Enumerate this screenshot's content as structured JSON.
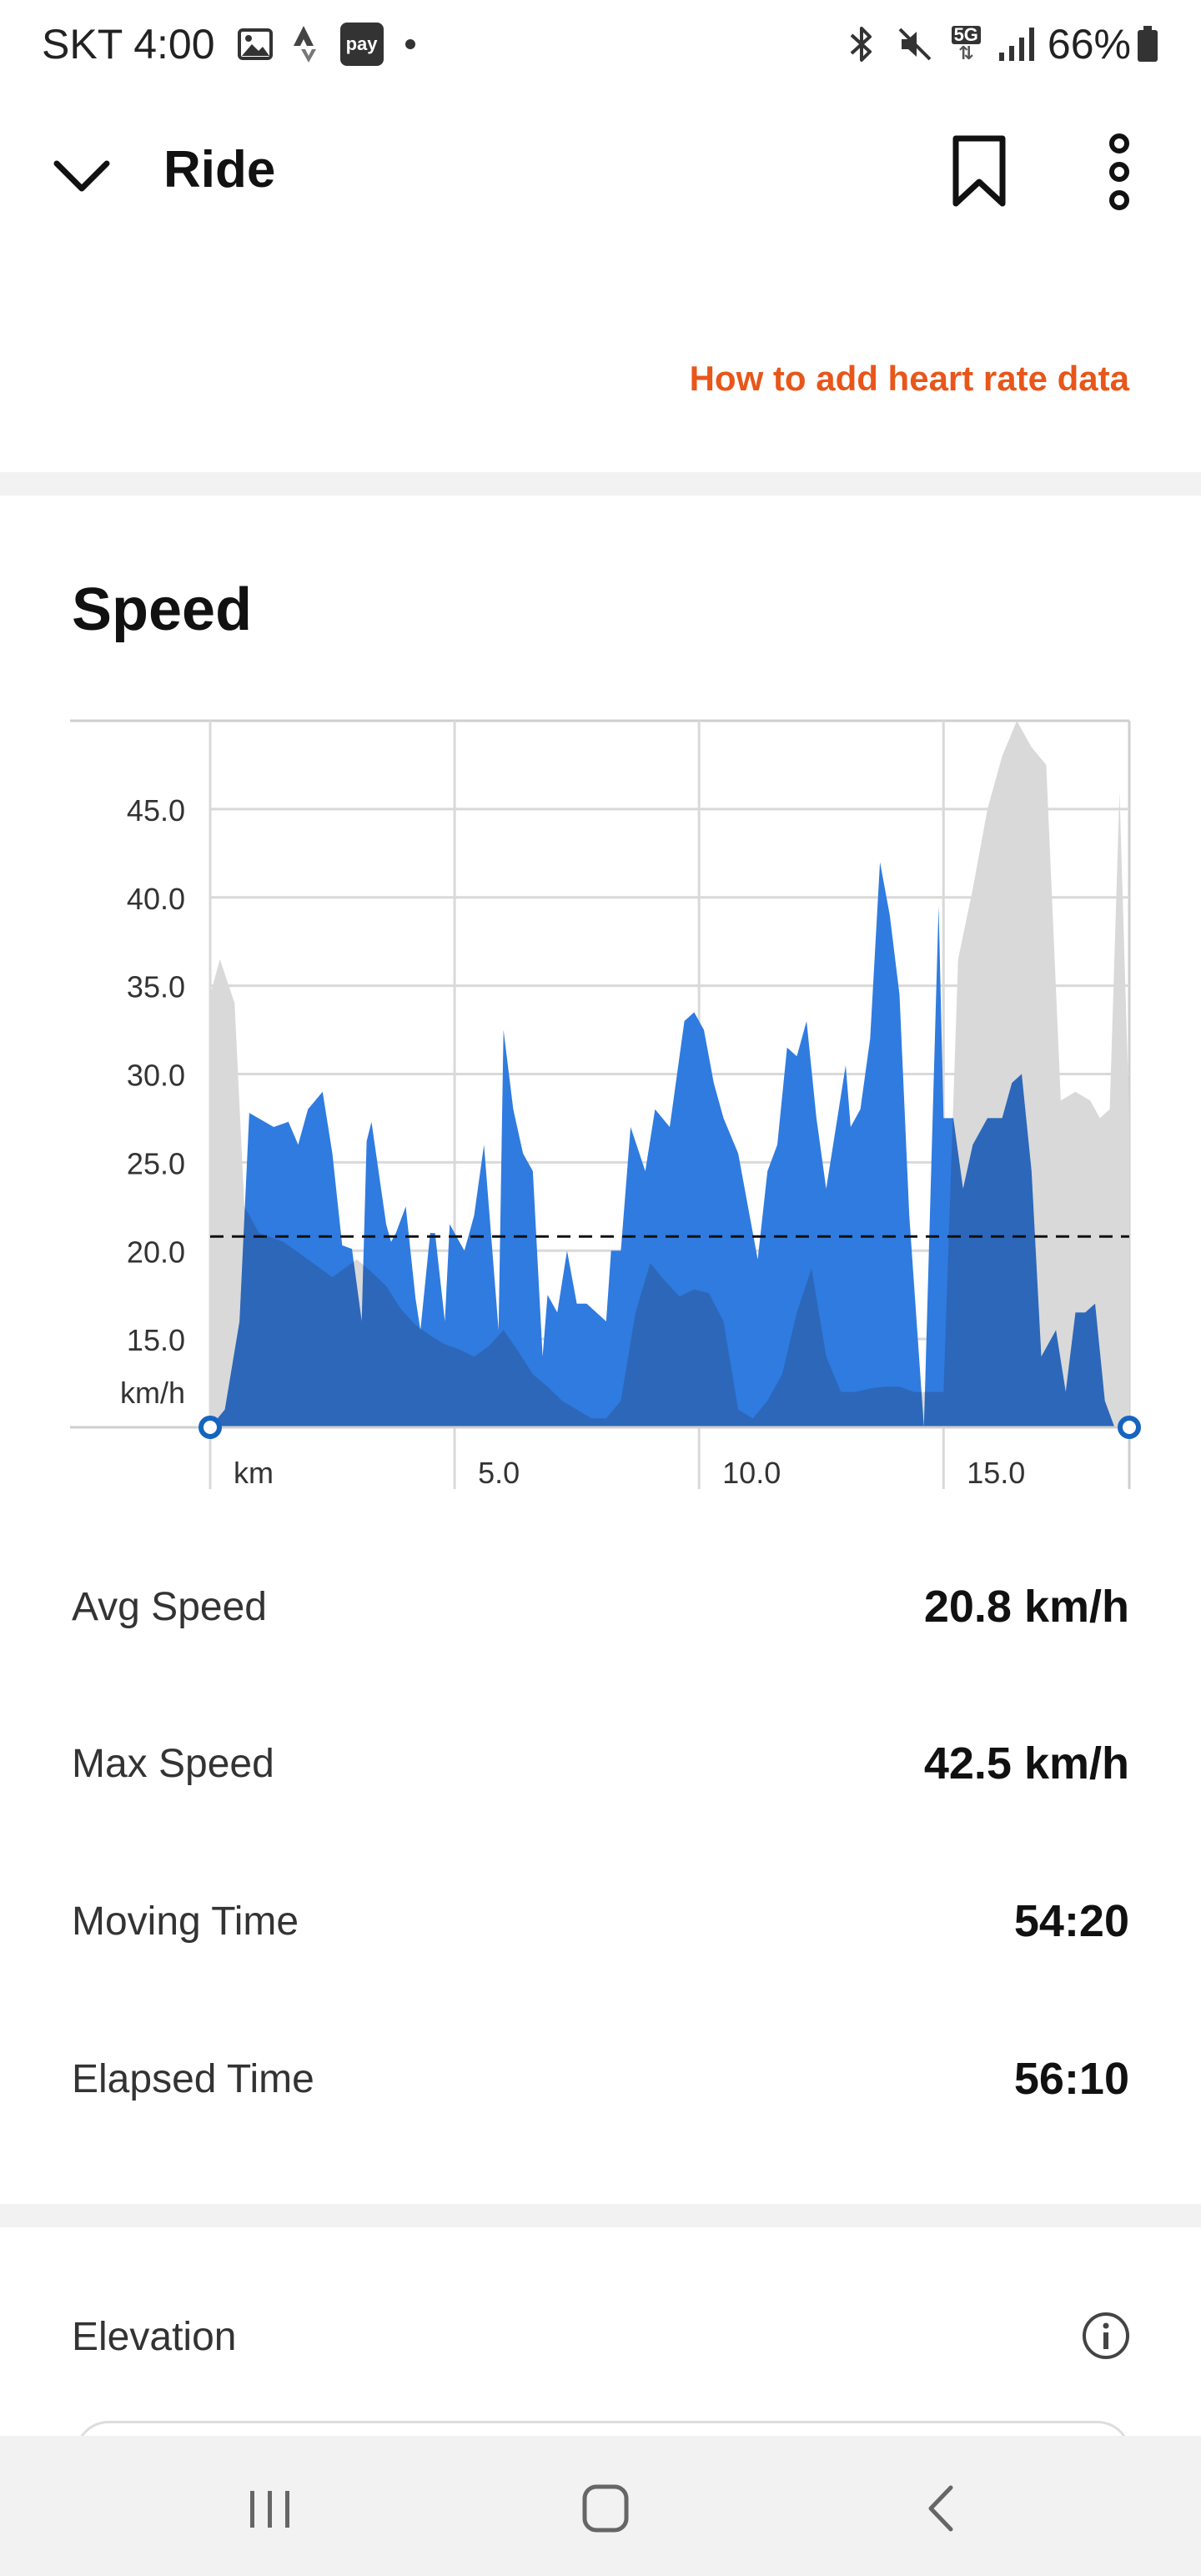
{
  "status_bar": {
    "carrier_time": "SKT 4:00",
    "pay_badge": "pay",
    "network": "5G",
    "battery": "66%"
  },
  "app_bar": {
    "title": "Ride"
  },
  "heart_rate": {
    "link": "How to add heart rate data"
  },
  "speed": {
    "title": "Speed"
  },
  "chart_data": {
    "type": "area",
    "title": "Speed",
    "xlabel": "km",
    "ylabel": "km/h",
    "xlim": [
      0,
      18.8
    ],
    "ylim": [
      10,
      50
    ],
    "x_ticks": [
      {
        "value": 0,
        "label": "km"
      },
      {
        "value": 5,
        "label": "5.0"
      },
      {
        "value": 10,
        "label": "10.0"
      },
      {
        "value": 15,
        "label": "15.0"
      }
    ],
    "y_ticks": [
      {
        "value": 45,
        "label": "45.0"
      },
      {
        "value": 40,
        "label": "40.0"
      },
      {
        "value": 35,
        "label": "35.0"
      },
      {
        "value": 30,
        "label": "30.0"
      },
      {
        "value": 25,
        "label": "25.0"
      },
      {
        "value": 20,
        "label": "20.0"
      },
      {
        "value": 15,
        "label": "15.0"
      }
    ],
    "grid": true,
    "average": 20.8,
    "series": [
      {
        "role": "speed",
        "color": "#2f7be0",
        "x": [
          0,
          0.3,
          0.6,
          0.8,
          1.3,
          1.6,
          1.8,
          2.0,
          2.3,
          2.5,
          2.7,
          2.9,
          3.1,
          3.2,
          3.3,
          3.6,
          3.7,
          3.8,
          4.0,
          4.2,
          4.3,
          4.5,
          4.6,
          4.8,
          4.9,
          5.1,
          5.2,
          5.3,
          5.4,
          5.6,
          5.9,
          6.0,
          6.2,
          6.4,
          6.6,
          6.8,
          6.9,
          7.1,
          7.3,
          7.5,
          7.7,
          8.1,
          8.2,
          8.4,
          8.6,
          8.9,
          9.1,
          9.4,
          9.7,
          9.9,
          10.1,
          10.3,
          10.5,
          10.8,
          11.2,
          11.4,
          11.6,
          11.8,
          12.0,
          12.2,
          12.4,
          12.6,
          12.8,
          13.0,
          13.1,
          13.3,
          13.5,
          13.7,
          13.9,
          14.1,
          14.3,
          14.6,
          14.9,
          15.0,
          15.2,
          15.4,
          15.6,
          15.9,
          16.2,
          16.4,
          16.6,
          16.8,
          17.0,
          17.3,
          17.5,
          17.7,
          17.9,
          18.1,
          18.3,
          18.5,
          18.7,
          18.8
        ],
        "values": [
          10,
          11,
          16,
          27.8,
          27,
          27.3,
          26,
          28,
          29,
          25.5,
          20.3,
          20.1,
          16,
          26.2,
          27.3,
          21.5,
          20.5,
          21,
          22.5,
          17.3,
          15.5,
          21,
          21,
          16,
          21.5,
          20.5,
          20,
          21,
          22,
          26,
          15.5,
          32.5,
          28,
          25.5,
          24.5,
          14,
          17.5,
          16.5,
          20,
          17,
          17,
          16,
          20,
          20,
          27,
          24.5,
          28,
          27,
          33,
          33.5,
          32.5,
          29.5,
          27.5,
          25.5,
          19.5,
          24.5,
          26,
          31.5,
          31,
          33,
          27.5,
          23.5,
          27,
          30.5,
          27,
          28,
          32,
          42,
          39,
          34.5,
          22,
          10,
          39.5,
          27.5,
          27.5,
          23.5,
          26,
          27.5,
          27.5,
          29.5,
          30,
          24.5,
          14,
          15.5,
          12,
          16.5,
          16.5,
          17,
          11.5,
          10,
          10,
          10
        ]
      },
      {
        "role": "elevation",
        "color": "#d9d9d9",
        "x": [
          0,
          0.2,
          0.5,
          0.7,
          1.0,
          1.5,
          2.0,
          2.5,
          3.0,
          3.3,
          3.6,
          3.9,
          4.2,
          4.5,
          4.8,
          5.1,
          5.4,
          5.7,
          6.0,
          6.3,
          6.6,
          6.9,
          7.2,
          7.5,
          7.8,
          8.1,
          8.4,
          8.7,
          9.0,
          9.3,
          9.6,
          9.9,
          10.2,
          10.5,
          10.8,
          11.1,
          11.4,
          11.7,
          12.0,
          12.3,
          12.6,
          12.9,
          13.2,
          13.5,
          13.8,
          14.1,
          14.4,
          14.7,
          15.0,
          15.3,
          15.6,
          15.9,
          16.2,
          16.5,
          16.8,
          17.1,
          17.4,
          17.7,
          18.0,
          18.2,
          18.4,
          18.6,
          18.8
        ],
        "values": [
          34.5,
          36.5,
          34,
          22.5,
          21,
          20.5,
          19.5,
          18.5,
          19.5,
          18.8,
          18,
          16.7,
          15.8,
          15.2,
          14.7,
          14.4,
          14,
          14.6,
          15.5,
          14.3,
          13,
          12.3,
          11.5,
          11,
          10.5,
          10.5,
          11.5,
          16.5,
          19.3,
          18.3,
          17.4,
          17.8,
          17.6,
          16,
          11,
          10.5,
          11.5,
          13,
          16.5,
          19,
          14,
          12,
          12,
          12.2,
          12.3,
          12.3,
          12,
          12,
          12,
          36.5,
          40.5,
          45,
          48,
          50,
          48.5,
          47.5,
          28.5,
          29,
          28.5,
          27.5,
          28,
          46,
          27.5
        ]
      }
    ]
  },
  "stats": [
    {
      "label": "Avg Speed",
      "value": "20.8 km/h"
    },
    {
      "label": "Max Speed",
      "value": "42.5 km/h"
    },
    {
      "label": "Moving Time",
      "value": "54:20"
    },
    {
      "label": "Elapsed Time",
      "value": "56:10"
    }
  ],
  "elevation": {
    "title": "Elevation"
  }
}
